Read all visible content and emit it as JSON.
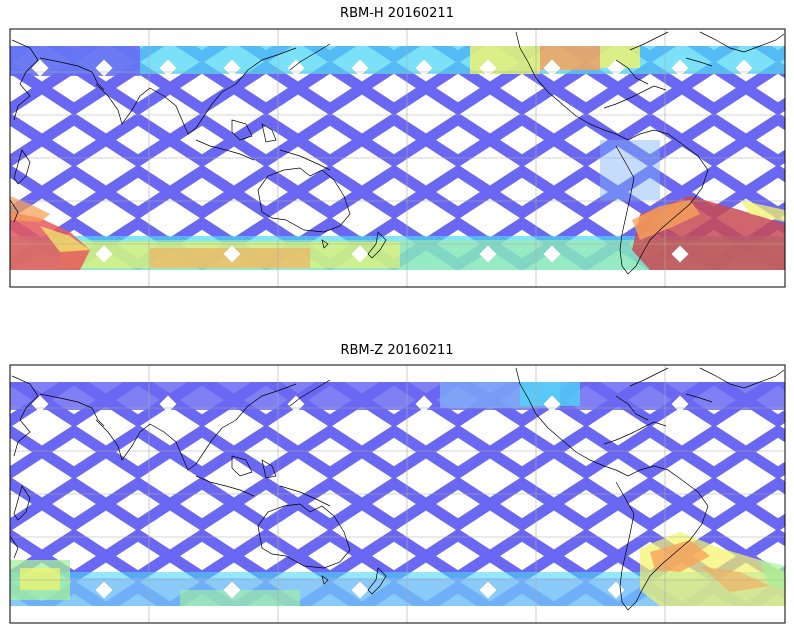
{
  "panels": [
    {
      "title": "RBM-H 20160211",
      "variant": "H"
    },
    {
      "title": "RBM-Z 20160211",
      "variant": "Z"
    }
  ],
  "colors": {
    "swath_base": "#6a68f2",
    "swath_cyan": "#4fd7f6",
    "low_mid": "#7fb2f8",
    "yellow": "#f3f36a",
    "orange": "#f7a25a",
    "red": "#e8595c",
    "dark_red": "#c94a52",
    "green_yellow": "#a6f29a",
    "coast": "#000000",
    "grid": "#aaaaaa"
  }
}
